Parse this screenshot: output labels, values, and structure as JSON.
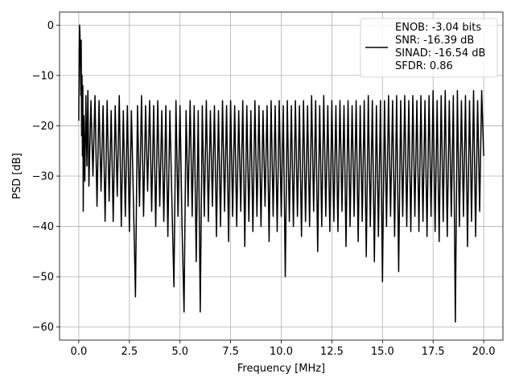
{
  "chart_data": {
    "type": "line",
    "title": "",
    "xlabel": "Frequency [MHz]",
    "ylabel": "PSD [dB]",
    "xlim": [
      -0.95,
      20.95
    ],
    "ylim": [
      -62.6,
      2.6
    ],
    "grid": true,
    "legend_position": "top-right",
    "line_color": "#000000",
    "x_ticks": [
      {
        "value": 0.0,
        "label": "0.0"
      },
      {
        "value": 2.5,
        "label": "2.5"
      },
      {
        "value": 5.0,
        "label": "5.0"
      },
      {
        "value": 7.5,
        "label": "7.5"
      },
      {
        "value": 10.0,
        "label": "10.0"
      },
      {
        "value": 12.5,
        "label": "12.5"
      },
      {
        "value": 15.0,
        "label": "15.0"
      },
      {
        "value": 17.5,
        "label": "17.5"
      },
      {
        "value": 20.0,
        "label": "20.0"
      }
    ],
    "y_ticks": [
      {
        "value": 0,
        "label": "0"
      },
      {
        "value": -10,
        "label": "−10"
      },
      {
        "value": -20,
        "label": "−20"
      },
      {
        "value": -30,
        "label": "−30"
      },
      {
        "value": -40,
        "label": "−40"
      },
      {
        "value": -50,
        "label": "−50"
      },
      {
        "value": -60,
        "label": "−60"
      }
    ],
    "legend": {
      "lines": [
        "ENOB: -3.04 bits",
        "SNR: -16.39 dB",
        "SINAD: -16.54 dB",
        "SFDR: 0.86"
      ]
    },
    "series": [
      {
        "values": [
          [
            0.0,
            -19
          ],
          [
            0.02,
            -5
          ],
          [
            0.04,
            0
          ],
          [
            0.06,
            -2
          ],
          [
            0.08,
            -8
          ],
          [
            0.1,
            -14
          ],
          [
            0.12,
            -3
          ],
          [
            0.14,
            -22
          ],
          [
            0.16,
            -10
          ],
          [
            0.18,
            -26
          ],
          [
            0.2,
            -12
          ],
          [
            0.22,
            -37
          ],
          [
            0.25,
            -18
          ],
          [
            0.3,
            -31
          ],
          [
            0.35,
            -14
          ],
          [
            0.4,
            -28
          ],
          [
            0.45,
            -13
          ],
          [
            0.5,
            -32
          ],
          [
            0.6,
            -15
          ],
          [
            0.7,
            -30
          ],
          [
            0.8,
            -14
          ],
          [
            0.9,
            -36
          ],
          [
            1.0,
            -15
          ],
          [
            1.1,
            -33
          ],
          [
            1.2,
            -16
          ],
          [
            1.3,
            -39
          ],
          [
            1.4,
            -15
          ],
          [
            1.5,
            -35
          ],
          [
            1.6,
            -17
          ],
          [
            1.7,
            -39
          ],
          [
            1.8,
            -16
          ],
          [
            1.9,
            -34
          ],
          [
            2.0,
            -14
          ],
          [
            2.1,
            -40
          ],
          [
            2.2,
            -17
          ],
          [
            2.3,
            -38
          ],
          [
            2.4,
            -16
          ],
          [
            2.5,
            -41
          ],
          [
            2.6,
            -17
          ],
          [
            2.7,
            -35
          ],
          [
            2.8,
            -54
          ],
          [
            2.9,
            -16
          ],
          [
            3.0,
            -36
          ],
          [
            3.1,
            -14
          ],
          [
            3.2,
            -38
          ],
          [
            3.3,
            -16
          ],
          [
            3.4,
            -33
          ],
          [
            3.5,
            -15
          ],
          [
            3.6,
            -37
          ],
          [
            3.7,
            -16
          ],
          [
            3.8,
            -40
          ],
          [
            3.9,
            -15
          ],
          [
            4.0,
            -36
          ],
          [
            4.1,
            -17
          ],
          [
            4.2,
            -39
          ],
          [
            4.3,
            -16
          ],
          [
            4.4,
            -42
          ],
          [
            4.5,
            -17
          ],
          [
            4.6,
            -35
          ],
          [
            4.7,
            -52
          ],
          [
            4.8,
            -15
          ],
          [
            4.9,
            -38
          ],
          [
            5.0,
            -16
          ],
          [
            5.1,
            -40
          ],
          [
            5.2,
            -57
          ],
          [
            5.3,
            -17
          ],
          [
            5.4,
            -36
          ],
          [
            5.5,
            -15
          ],
          [
            5.6,
            -38
          ],
          [
            5.7,
            -16
          ],
          [
            5.8,
            -47
          ],
          [
            5.9,
            -17
          ],
          [
            6.0,
            -57
          ],
          [
            6.1,
            -16
          ],
          [
            6.2,
            -38
          ],
          [
            6.3,
            -15
          ],
          [
            6.4,
            -39
          ],
          [
            6.5,
            -17
          ],
          [
            6.6,
            -36
          ],
          [
            6.7,
            -16
          ],
          [
            6.8,
            -42
          ],
          [
            6.9,
            -17
          ],
          [
            7.0,
            -40
          ],
          [
            7.1,
            -15
          ],
          [
            7.2,
            -37
          ],
          [
            7.3,
            -16
          ],
          [
            7.4,
            -43
          ],
          [
            7.5,
            -15
          ],
          [
            7.6,
            -38
          ],
          [
            7.7,
            -16
          ],
          [
            7.8,
            -40
          ],
          [
            7.9,
            -17
          ],
          [
            8.0,
            -37
          ],
          [
            8.1,
            -15
          ],
          [
            8.2,
            -44
          ],
          [
            8.3,
            -16
          ],
          [
            8.4,
            -39
          ],
          [
            8.5,
            -17
          ],
          [
            8.6,
            -41
          ],
          [
            8.7,
            -15
          ],
          [
            8.8,
            -38
          ],
          [
            8.9,
            -16
          ],
          [
            9.0,
            -40
          ],
          [
            9.1,
            -17
          ],
          [
            9.2,
            -36
          ],
          [
            9.3,
            -16
          ],
          [
            9.4,
            -43
          ],
          [
            9.5,
            -15
          ],
          [
            9.6,
            -38
          ],
          [
            9.7,
            -16
          ],
          [
            9.8,
            -41
          ],
          [
            9.9,
            -15
          ],
          [
            10.0,
            -38
          ],
          [
            10.1,
            -16
          ],
          [
            10.2,
            -50
          ],
          [
            10.3,
            -15
          ],
          [
            10.4,
            -39
          ],
          [
            10.5,
            -16
          ],
          [
            10.6,
            -40
          ],
          [
            10.7,
            -15
          ],
          [
            10.8,
            -38
          ],
          [
            10.9,
            -16
          ],
          [
            11.0,
            -42
          ],
          [
            11.1,
            -15
          ],
          [
            11.2,
            -39
          ],
          [
            11.3,
            -16
          ],
          [
            11.4,
            -40
          ],
          [
            11.5,
            -14
          ],
          [
            11.6,
            -37
          ],
          [
            11.7,
            -15
          ],
          [
            11.8,
            -45
          ],
          [
            11.9,
            -16
          ],
          [
            12.0,
            -40
          ],
          [
            12.1,
            -14
          ],
          [
            12.2,
            -38
          ],
          [
            12.3,
            -16
          ],
          [
            12.4,
            -41
          ],
          [
            12.5,
            -15
          ],
          [
            12.6,
            -39
          ],
          [
            12.7,
            -16
          ],
          [
            12.8,
            -41
          ],
          [
            12.9,
            -15
          ],
          [
            13.0,
            -37
          ],
          [
            13.1,
            -16
          ],
          [
            13.2,
            -44
          ],
          [
            13.3,
            -15
          ],
          [
            13.4,
            -40
          ],
          [
            13.5,
            -16
          ],
          [
            13.6,
            -38
          ],
          [
            13.7,
            -15
          ],
          [
            13.8,
            -43
          ],
          [
            13.9,
            -16
          ],
          [
            14.0,
            -39
          ],
          [
            14.1,
            -15
          ],
          [
            14.2,
            -46
          ],
          [
            14.3,
            -14
          ],
          [
            14.4,
            -40
          ],
          [
            14.5,
            -15
          ],
          [
            14.6,
            -47
          ],
          [
            14.7,
            -16
          ],
          [
            14.8,
            -42
          ],
          [
            14.9,
            -15
          ],
          [
            15.0,
            -51
          ],
          [
            15.1,
            -15
          ],
          [
            15.2,
            -40
          ],
          [
            15.3,
            -14
          ],
          [
            15.4,
            -38
          ],
          [
            15.5,
            -15
          ],
          [
            15.6,
            -42
          ],
          [
            15.7,
            -14
          ],
          [
            15.8,
            -49
          ],
          [
            15.9,
            -15
          ],
          [
            16.0,
            -38
          ],
          [
            16.1,
            -14
          ],
          [
            16.2,
            -40
          ],
          [
            16.3,
            -15
          ],
          [
            16.4,
            -41
          ],
          [
            16.5,
            -14
          ],
          [
            16.6,
            -38
          ],
          [
            16.7,
            -15
          ],
          [
            16.8,
            -41
          ],
          [
            16.9,
            -14
          ],
          [
            17.0,
            -39
          ],
          [
            17.1,
            -15
          ],
          [
            17.2,
            -42
          ],
          [
            17.3,
            -14
          ],
          [
            17.4,
            -38
          ],
          [
            17.5,
            -13
          ],
          [
            17.6,
            -41
          ],
          [
            17.7,
            -15
          ],
          [
            17.8,
            -43
          ],
          [
            17.9,
            -14
          ],
          [
            18.0,
            -39
          ],
          [
            18.1,
            -13
          ],
          [
            18.2,
            -42
          ],
          [
            18.3,
            -15
          ],
          [
            18.4,
            -38
          ],
          [
            18.5,
            -14
          ],
          [
            18.6,
            -59
          ],
          [
            18.7,
            -13
          ],
          [
            18.8,
            -40
          ],
          [
            18.9,
            -15
          ],
          [
            19.0,
            -38
          ],
          [
            19.1,
            -14
          ],
          [
            19.2,
            -44
          ],
          [
            19.3,
            -15
          ],
          [
            19.4,
            -39
          ],
          [
            19.5,
            -13
          ],
          [
            19.6,
            -42
          ],
          [
            19.7,
            -15
          ],
          [
            19.8,
            -37
          ],
          [
            19.9,
            -13
          ],
          [
            20.0,
            -26
          ]
        ]
      }
    ]
  }
}
